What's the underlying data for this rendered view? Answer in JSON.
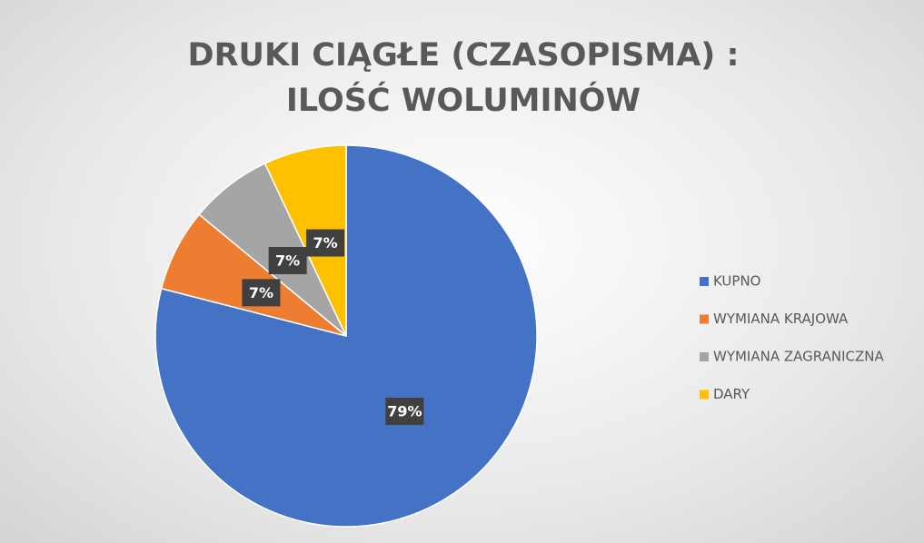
{
  "chart_data": {
    "type": "pie",
    "title": "DRUKI CIĄGŁE (CZASOPISMA) : ILOŚĆ WOLUMINÓW",
    "categories": [
      "KUPNO",
      "WYMIANA KRAJOWA",
      "WYMIANA ZAGRANICZNA",
      "DARY"
    ],
    "values": [
      79,
      7,
      7,
      7
    ],
    "colors": [
      "#4472c4",
      "#ed7d31",
      "#a5a5a5",
      "#ffc000"
    ],
    "legend": "right"
  }
}
